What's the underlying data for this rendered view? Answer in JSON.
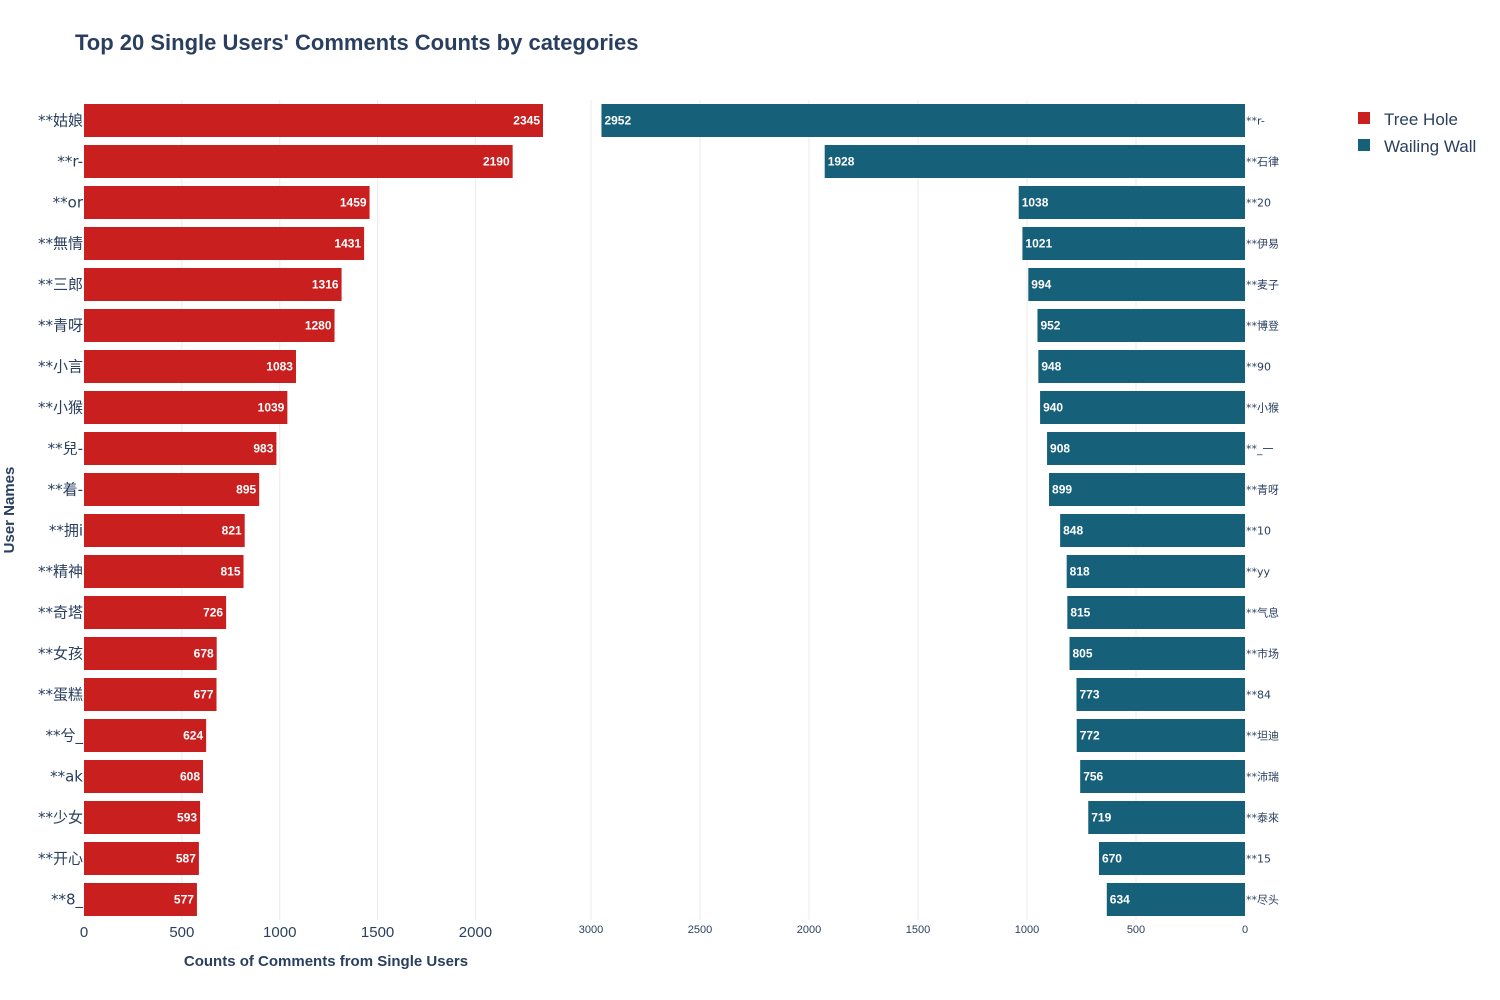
{
  "colors": {
    "tree_hole": "#c91f1f",
    "wailing_wall": "#166079",
    "text": "#2a3f5f",
    "grid": "#ebebeb"
  },
  "chart_data": {
    "type": "bar",
    "orientation": "horizontal",
    "title": "Top 20 Single Users' Comments Counts by categories",
    "xlabel": "Counts of Comments from Single Users",
    "ylabel": "User Names",
    "legend_position": "top-right",
    "legend": [
      "Tree Hole",
      "Wailing Wall"
    ],
    "panels": [
      {
        "series_name": "Tree Hole",
        "color": "#c91f1f",
        "xlim": [
          0,
          2345
        ],
        "xticks": [
          0,
          500,
          1000,
          1500,
          2000
        ],
        "xtick_labels": [
          "0",
          "500",
          "1000",
          "1500",
          "2000"
        ],
        "categories": [
          "**姑娘",
          "**r-",
          "**or",
          "**無情",
          "**三郎",
          "**青呀",
          "**小言",
          "**小猴",
          "**兒-",
          "**着-",
          "**拥i",
          "**精神",
          "**奇塔",
          "**女孩",
          "**蛋糕",
          "**兮_",
          "**ak",
          "**少女",
          "**开心",
          "**8_"
        ],
        "values": [
          2345,
          2190,
          1459,
          1431,
          1316,
          1280,
          1083,
          1039,
          983,
          895,
          821,
          815,
          726,
          678,
          677,
          624,
          608,
          593,
          587,
          577
        ]
      },
      {
        "series_name": "Wailing Wall",
        "color": "#166079",
        "reversed": true,
        "xlim": [
          0,
          3000
        ],
        "xticks": [
          3000,
          2500,
          2000,
          1500,
          1000,
          500,
          0
        ],
        "xtick_labels": [
          "3000",
          "2500",
          "2000",
          "1500",
          "1000",
          "500",
          "0"
        ],
        "categories": [
          "**r-",
          "**石律",
          "**20",
          "**伊易",
          "**麦子",
          "**博登",
          "**90",
          "**小猴",
          "**_一",
          "**青呀",
          "**10",
          "**yy",
          "**气息",
          "**市场",
          "**84",
          "**坦迪",
          "**沛瑞",
          "**泰來",
          "**15",
          "**尽头"
        ],
        "values": [
          2952,
          1928,
          1038,
          1021,
          994,
          952,
          948,
          940,
          908,
          899,
          848,
          818,
          815,
          805,
          773,
          772,
          756,
          719,
          670,
          634
        ]
      }
    ]
  }
}
